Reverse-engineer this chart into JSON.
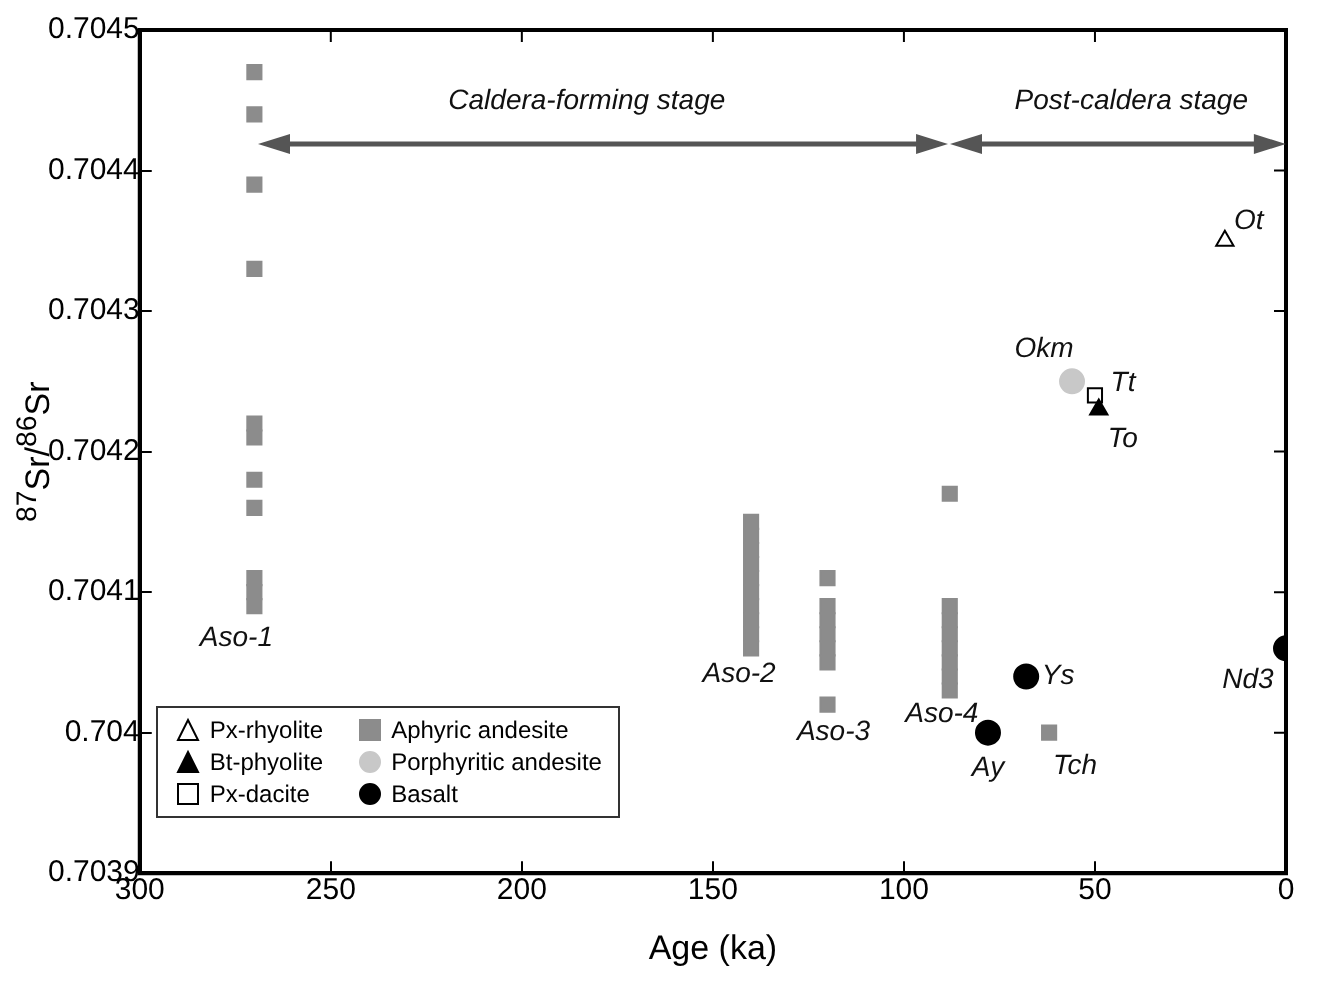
{
  "chart_data": {
    "type": "scatter",
    "xlabel": "Age (ka)",
    "ylabel": "$^{87}$Sr/$^{86}$Sr",
    "xlim": [
      300,
      0
    ],
    "xticks": [
      300,
      250,
      200,
      150,
      100,
      50,
      0
    ],
    "ylim": [
      0.7039,
      0.7045
    ],
    "yticks": [
      0.7039,
      0.704,
      0.7041,
      0.7042,
      0.7043,
      0.7044,
      0.7045
    ],
    "grid": false,
    "legend": "bottom left",
    "series": [
      {
        "name": "Px-rhyolite",
        "color": "#ffffff",
        "marker": "triangle",
        "x": [
          16
        ],
        "values": [
          0.70435
        ]
      },
      {
        "name": "Bt-phyolite",
        "color": "#000000",
        "marker": "triangle",
        "x": [
          49
        ],
        "values": [
          0.70423
        ]
      },
      {
        "name": "Px-dacite",
        "color": "#ffffff",
        "marker": "square",
        "x": [
          50
        ],
        "values": [
          0.70424
        ]
      },
      {
        "name": "Aphyric andesite",
        "color": "#8c8c8c",
        "marker": "square",
        "x": [
          270,
          270,
          270,
          270,
          270,
          270,
          270,
          270,
          270,
          270,
          270,
          140,
          140,
          140,
          140,
          140,
          140,
          140,
          140,
          140,
          140,
          120,
          120,
          120,
          120,
          120,
          120,
          120,
          88,
          88,
          88,
          88,
          88,
          88,
          88,
          88,
          62
        ],
        "values": [
          0.70447,
          0.70444,
          0.70439,
          0.70433,
          0.70422,
          0.70421,
          0.70418,
          0.70416,
          0.70411,
          0.7041,
          0.70409,
          0.70415,
          0.70414,
          0.70413,
          0.70412,
          0.70411,
          0.7041,
          0.70409,
          0.70408,
          0.70407,
          0.70406,
          0.70411,
          0.70409,
          0.70408,
          0.70407,
          0.70406,
          0.70405,
          0.70402,
          0.70417,
          0.70409,
          0.70408,
          0.70407,
          0.70406,
          0.70405,
          0.70404,
          0.70403,
          0.704
        ]
      },
      {
        "name": "Porphyritic andesite",
        "color": "#c8c8c8",
        "marker": "circle",
        "x": [
          56
        ],
        "values": [
          0.70425
        ]
      },
      {
        "name": "Basalt",
        "color": "#000000",
        "marker": "circle",
        "x": [
          68,
          78,
          0
        ],
        "values": [
          0.70404,
          0.704,
          0.70406
        ]
      }
    ],
    "annotations": [
      "Caldera-forming stage",
      "Post-caldera stage",
      {
        "text": "Aso-1",
        "x": 270,
        "y": 0.70409
      },
      {
        "text": "Aso-2",
        "x": 140,
        "y": 0.70406
      },
      {
        "text": "Aso-3",
        "x": 120,
        "y": 0.70402
      },
      {
        "text": "Aso-4",
        "x": 88,
        "y": 0.70403
      },
      {
        "text": "Ys",
        "x": 68,
        "y": 0.70404
      },
      {
        "text": "Ay",
        "x": 78,
        "y": 0.704
      },
      {
        "text": "Tch",
        "x": 62,
        "y": 0.704
      },
      {
        "text": "Nd3",
        "x": 0,
        "y": 0.70406
      },
      {
        "text": "Ot",
        "x": 16,
        "y": 0.70435
      },
      {
        "text": "Okm",
        "x": 56,
        "y": 0.70425
      },
      {
        "text": "Tt",
        "x": 50,
        "y": 0.70424
      },
      {
        "text": "To",
        "x": 49,
        "y": 0.70423
      }
    ]
  }
}
